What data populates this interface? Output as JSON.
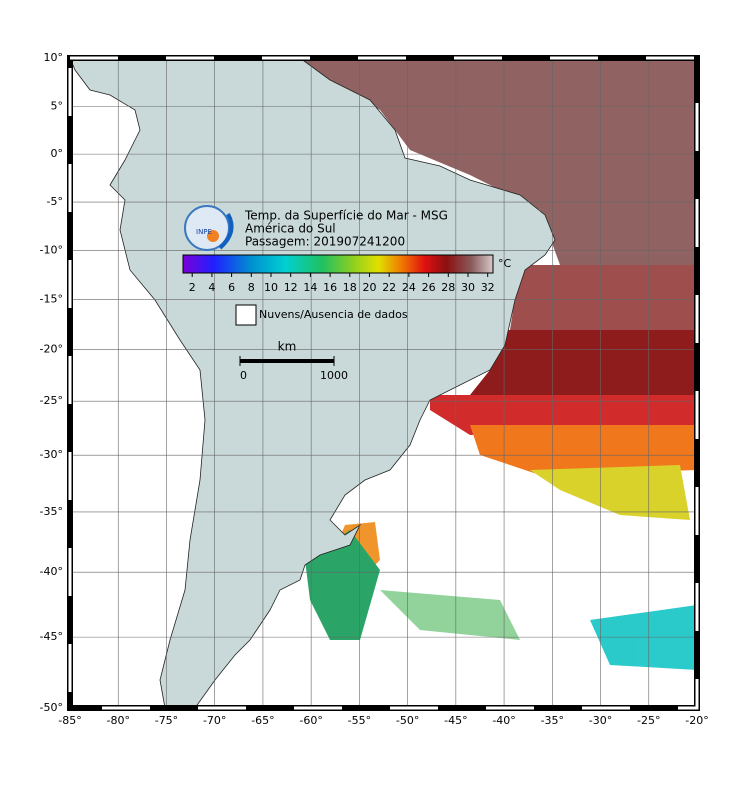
{
  "header": {
    "title": "Temp. da Superfície do Mar - MSG",
    "region": "América do Sul",
    "pass": "Passagem: 201907241200",
    "logo": "INPE"
  },
  "colorbar": {
    "ticks": [
      2,
      4,
      6,
      8,
      10,
      12,
      14,
      16,
      18,
      20,
      22,
      24,
      26,
      28,
      30,
      32
    ],
    "unit": "°C"
  },
  "legend": {
    "no_data": "Nuvens/Ausencia de dados"
  },
  "scale_bar": {
    "unit": "km",
    "ticks": [
      0,
      1000
    ]
  },
  "map": {
    "lon_ticks": [
      {
        "value": -85,
        "label": "-85°"
      },
      {
        "value": -80,
        "label": "-80°"
      },
      {
        "value": -75,
        "label": "-75°"
      },
      {
        "value": -70,
        "label": "-70°"
      },
      {
        "value": -65,
        "label": "-65°"
      },
      {
        "value": -60,
        "label": "-60°"
      },
      {
        "value": -55,
        "label": "-55°"
      },
      {
        "value": -50,
        "label": "-50°"
      },
      {
        "value": -45,
        "label": "-45°"
      },
      {
        "value": -40,
        "label": "-40°"
      },
      {
        "value": -35,
        "label": "-35°"
      },
      {
        "value": -30,
        "label": "-30°"
      },
      {
        "value": -25,
        "label": "-25°"
      },
      {
        "value": -20,
        "label": "-20°"
      }
    ],
    "lat_ticks": [
      {
        "value": 10,
        "label": "10°"
      },
      {
        "value": 5,
        "label": "5°"
      },
      {
        "value": 0,
        "label": "0°"
      },
      {
        "value": -5,
        "label": "-5°"
      },
      {
        "value": -10,
        "label": "-10°"
      },
      {
        "value": -15,
        "label": "-15°"
      },
      {
        "value": -20,
        "label": "-20°"
      },
      {
        "value": -25,
        "label": "-25°"
      },
      {
        "value": -30,
        "label": "-30°"
      },
      {
        "value": -35,
        "label": "-35°"
      },
      {
        "value": -40,
        "label": "-40°"
      },
      {
        "value": -45,
        "label": "-45°"
      },
      {
        "value": -50,
        "label": "-50°"
      }
    ]
  }
}
